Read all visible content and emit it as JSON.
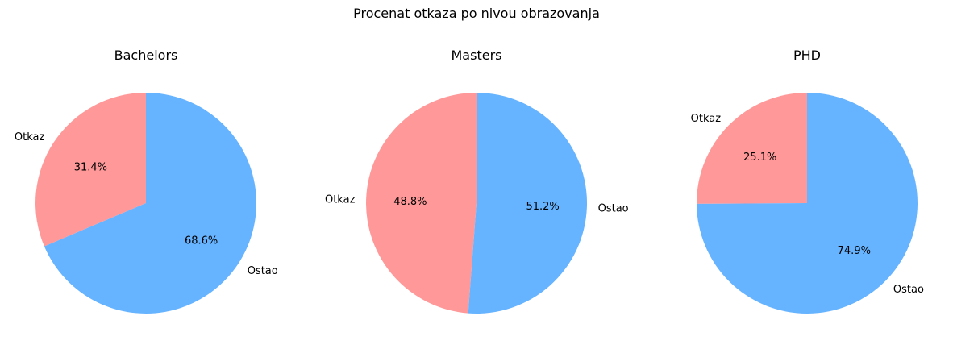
{
  "figure": {
    "title": "Procenat otkaza po nivou obrazovanja"
  },
  "colors": {
    "otkaz": "#ff9999",
    "ostao": "#66b3ff",
    "background": "#ffffff"
  },
  "chart_data": [
    {
      "type": "pie",
      "title": "Bachelors",
      "labels": [
        "Otkaz",
        "Ostao"
      ],
      "values": [
        31.4,
        68.6
      ],
      "value_labels": [
        "31.4%",
        "68.6%"
      ],
      "colors": [
        "#ff9999",
        "#66b3ff"
      ],
      "start_angle_deg": 90,
      "direction": "counterclockwise"
    },
    {
      "type": "pie",
      "title": "Masters",
      "labels": [
        "Otkaz",
        "Ostao"
      ],
      "values": [
        48.8,
        51.2
      ],
      "value_labels": [
        "48.8%",
        "51.2%"
      ],
      "colors": [
        "#ff9999",
        "#66b3ff"
      ],
      "start_angle_deg": 90,
      "direction": "counterclockwise"
    },
    {
      "type": "pie",
      "title": "PHD",
      "labels": [
        "Otkaz",
        "Ostao"
      ],
      "values": [
        25.1,
        74.9
      ],
      "value_labels": [
        "25.1%",
        "74.9%"
      ],
      "colors": [
        "#ff9999",
        "#66b3ff"
      ],
      "start_angle_deg": 90,
      "direction": "counterclockwise"
    }
  ]
}
